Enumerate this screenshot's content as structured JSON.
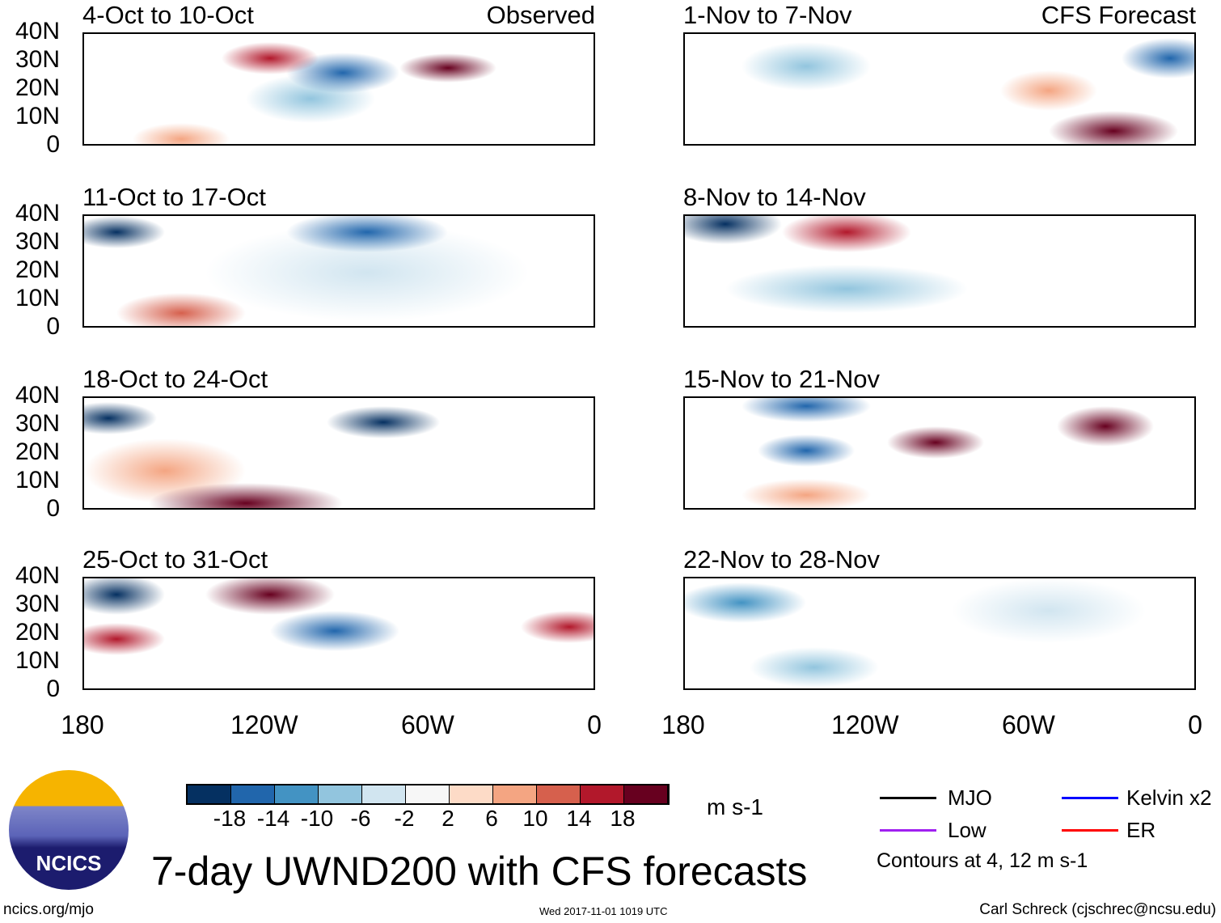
{
  "panels": [
    {
      "title": "4-Oct to 10-Oct",
      "label": "Observed"
    },
    {
      "title": "11-Oct to 17-Oct"
    },
    {
      "title": "18-Oct to 24-Oct"
    },
    {
      "title": "25-Oct to 31-Oct"
    },
    {
      "title": "1-Nov to 7-Nov",
      "label": "CFS Forecast"
    },
    {
      "title": "8-Nov to 14-Nov"
    },
    {
      "title": "15-Nov to 21-Nov"
    },
    {
      "title": "22-Nov to 28-Nov"
    }
  ],
  "y_ticks": [
    "40N",
    "30N",
    "20N",
    "10N",
    "0"
  ],
  "x_ticks": [
    "180",
    "120W",
    "60W",
    "0"
  ],
  "colorbar": {
    "colors": [
      "#053061",
      "#2166ac",
      "#4393c3",
      "#92c5de",
      "#d1e5f0",
      "#f7f7f7",
      "#fddbc7",
      "#f4a582",
      "#d6604d",
      "#b2182b",
      "#67001f"
    ],
    "ticks": [
      "-18",
      "-14",
      "-10",
      "-6",
      "-2",
      "2",
      "6",
      "10",
      "14",
      "18"
    ],
    "units": "m s-1"
  },
  "legend": [
    {
      "label": "MJO",
      "color": "#000000"
    },
    {
      "label": "Kelvin x2",
      "color": "#0000ff"
    },
    {
      "label": "Low",
      "color": "#a020f0"
    },
    {
      "label": "ER",
      "color": "#ff0000"
    }
  ],
  "contours_note": "Contours at 4, 12 m s-1",
  "title": "7-day UWND200 with CFS forecasts",
  "logo": "NCICS",
  "footer": {
    "url": "ncics.org/mjo",
    "date": "Wed 2017-11-01 1019 UTC",
    "author": "Carl Schreck (cjschrec@ncsu.edu)"
  }
}
